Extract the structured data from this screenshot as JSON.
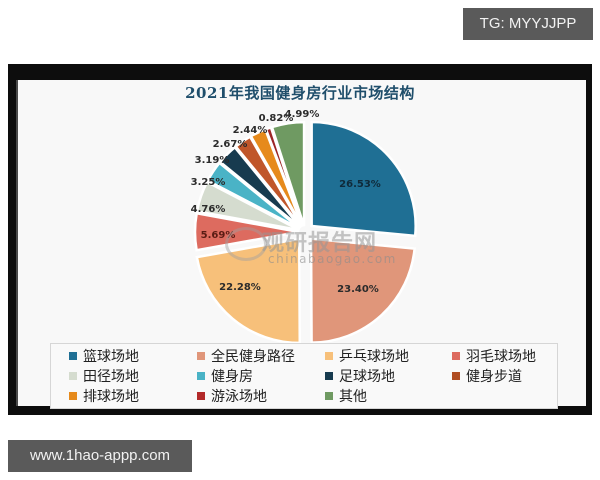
{
  "badges": {
    "top_right": "TG: MYYJJPP",
    "bottom_left": "www.1hao-appp.com"
  },
  "watermark": {
    "title": "观研报告网",
    "subtitle": "chinabaogao.com"
  },
  "chart_data": {
    "type": "pie",
    "title": "2021年我国健身房行业市场结构",
    "exploded": true,
    "legend_position": "bottom",
    "categories": [
      "篮球场地",
      "全民健身路径",
      "乒乓球场地",
      "羽毛球场地",
      "田径场地",
      "健身房",
      "足球场地",
      "健身步道",
      "排球场地",
      "游泳场地",
      "其他"
    ],
    "values": [
      26.53,
      23.4,
      22.28,
      5.69,
      4.76,
      3.25,
      3.19,
      2.67,
      2.44,
      0.82,
      4.99
    ],
    "labels": [
      "26.53%",
      "23.40%",
      "22.28%",
      "5.69%",
      "4.76%",
      "3.25%",
      "3.19%",
      "2.67%",
      "2.44%",
      "0.82%",
      "4.99%"
    ],
    "colors": [
      "#1f6f94",
      "#e0967a",
      "#f7c07a",
      "#dd6b5f",
      "#d5dccf",
      "#4ab3c6",
      "#173b4f",
      "#c0562a",
      "#e68a1c",
      "#9c2626",
      "#6f9a62"
    ],
    "unit": "%"
  },
  "legend": {
    "items": [
      {
        "label": "篮球场地",
        "color": "#1f6f94"
      },
      {
        "label": "全民健身路径",
        "color": "#e0967a"
      },
      {
        "label": "乒乓球场地",
        "color": "#f7c07a"
      },
      {
        "label": "羽毛球场地",
        "color": "#dd6b5f"
      },
      {
        "label": "田径场地",
        "color": "#d5dccf"
      },
      {
        "label": "健身房",
        "color": "#4ab3c6"
      },
      {
        "label": "足球场地",
        "color": "#173b4f"
      },
      {
        "label": "健身步道",
        "color": "#b04d22"
      },
      {
        "label": "排球场地",
        "color": "#e68a1c"
      },
      {
        "label": "游泳场地",
        "color": "#b32a2a"
      },
      {
        "label": "其他",
        "color": "#6f9a62"
      }
    ]
  }
}
